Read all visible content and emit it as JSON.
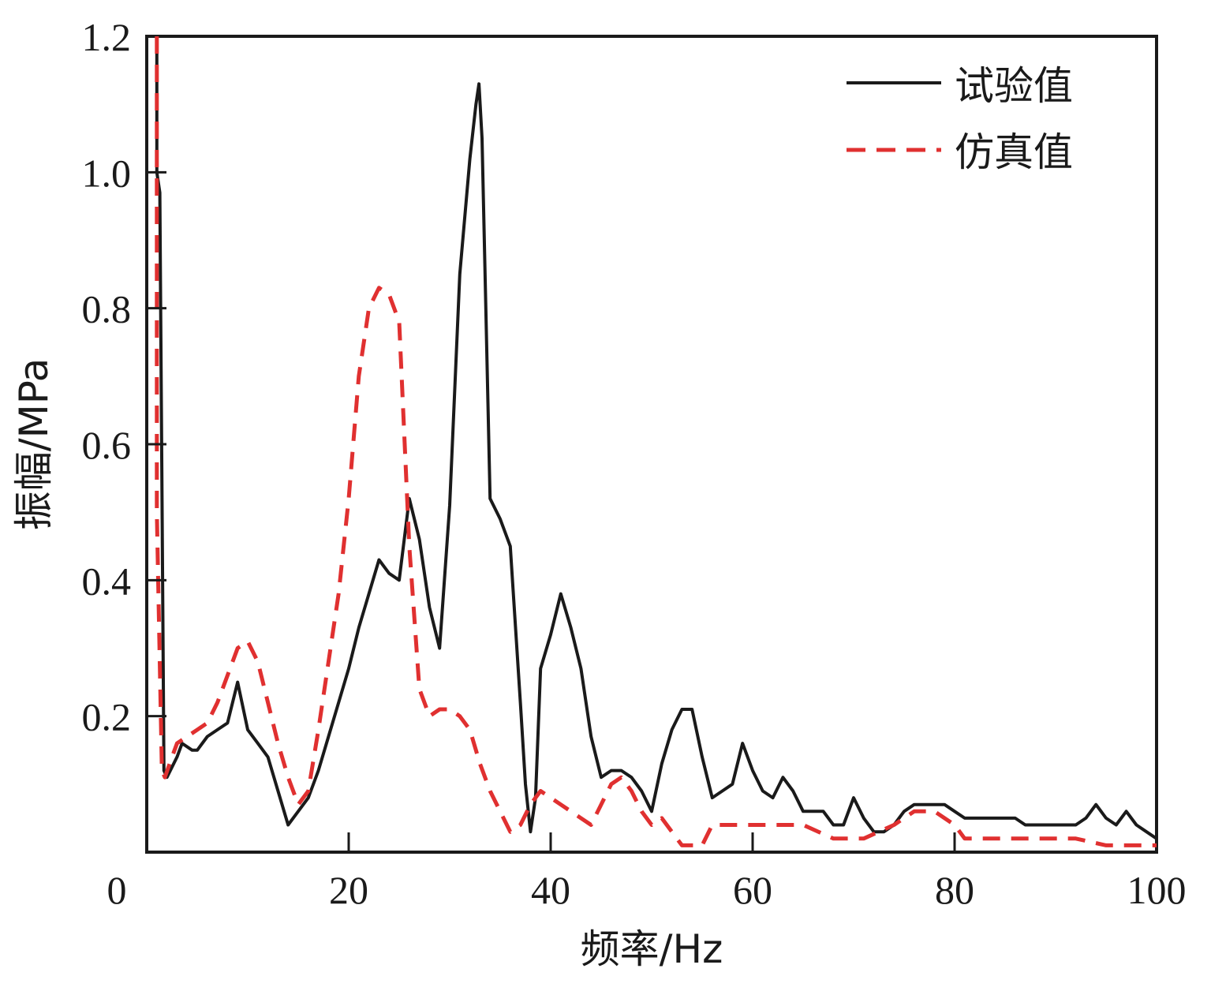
{
  "chart_data": {
    "type": "line",
    "xlabel": "频率/Hz",
    "ylabel": "振幅/MPa",
    "xlim": [
      0,
      100
    ],
    "ylim": [
      0,
      1.2
    ],
    "xticks": [
      "0",
      "20",
      "40",
      "60",
      "80",
      "100"
    ],
    "yticks": [
      "0.2",
      "0.4",
      "0.6",
      "0.8",
      "1.0",
      "1.2"
    ],
    "grid": false,
    "legend_position": "top-right",
    "series": [
      {
        "name": "试验值",
        "color": "#1a1a1a",
        "style": "solid",
        "x": [
          1,
          1,
          1.3,
          1.5,
          1.7,
          2,
          3,
          3.5,
          4.5,
          5,
          6,
          7,
          8,
          9,
          10,
          11,
          12,
          13,
          14,
          15,
          16,
          17,
          18,
          19,
          20,
          21,
          22,
          23,
          24,
          25,
          26,
          27,
          28,
          29,
          30,
          31,
          32,
          32.6,
          32.9,
          33.2,
          34,
          35,
          36,
          37,
          37.5,
          38,
          38.5,
          39,
          40,
          41,
          42,
          43,
          44,
          45,
          46,
          47,
          48,
          49,
          50,
          51,
          52,
          53,
          54,
          55,
          56,
          57,
          58,
          59,
          60,
          61,
          62,
          63,
          64,
          65,
          66,
          67,
          68,
          69,
          70,
          71,
          72,
          73,
          74,
          75,
          76,
          77,
          78,
          79,
          80,
          81,
          82,
          83,
          84,
          85,
          86,
          87,
          88,
          89,
          90,
          91,
          92,
          93,
          94,
          95,
          96,
          97,
          98,
          99,
          100
        ],
        "y": [
          1.2,
          1.0,
          0.97,
          0.55,
          0.12,
          0.11,
          0.14,
          0.16,
          0.15,
          0.15,
          0.17,
          0.18,
          0.19,
          0.25,
          0.18,
          0.16,
          0.14,
          0.09,
          0.04,
          0.06,
          0.08,
          0.12,
          0.17,
          0.22,
          0.27,
          0.33,
          0.38,
          0.43,
          0.41,
          0.4,
          0.52,
          0.46,
          0.36,
          0.3,
          0.51,
          0.85,
          1.02,
          1.1,
          1.13,
          1.05,
          0.52,
          0.49,
          0.45,
          0.22,
          0.1,
          0.03,
          0.08,
          0.27,
          0.32,
          0.38,
          0.33,
          0.27,
          0.17,
          0.11,
          0.12,
          0.12,
          0.11,
          0.09,
          0.06,
          0.13,
          0.18,
          0.21,
          0.21,
          0.14,
          0.08,
          0.09,
          0.1,
          0.16,
          0.12,
          0.09,
          0.08,
          0.11,
          0.09,
          0.06,
          0.06,
          0.06,
          0.04,
          0.04,
          0.08,
          0.05,
          0.03,
          0.03,
          0.04,
          0.06,
          0.07,
          0.07,
          0.07,
          0.07,
          0.06,
          0.05,
          0.05,
          0.05,
          0.05,
          0.05,
          0.05,
          0.04,
          0.04,
          0.04,
          0.04,
          0.04,
          0.04,
          0.05,
          0.07,
          0.05,
          0.04,
          0.06,
          0.04,
          0.03,
          0.02
        ]
      },
      {
        "name": "仿真值",
        "color": "#e03030",
        "style": "dashed",
        "x": [
          1,
          1,
          1.5,
          1.8,
          2.5,
          3,
          4,
          5,
          6,
          7,
          8,
          9,
          10,
          11,
          12,
          13,
          14,
          15,
          16,
          17,
          18,
          19,
          20,
          21,
          22,
          23,
          24,
          25,
          26,
          27,
          28,
          29,
          30,
          31,
          32,
          33,
          34,
          35,
          36,
          37,
          38,
          39,
          40,
          41,
          42,
          43,
          44,
          45,
          46,
          47,
          48,
          49,
          50,
          51,
          52,
          53,
          54,
          55,
          56,
          57,
          58,
          60,
          62,
          65,
          68,
          71,
          74,
          76,
          78,
          80,
          81,
          83,
          85,
          87,
          90,
          92,
          95,
          97,
          100
        ],
        "y": [
          1.2,
          0.5,
          0.12,
          0.11,
          0.14,
          0.16,
          0.17,
          0.18,
          0.19,
          0.22,
          0.26,
          0.3,
          0.31,
          0.28,
          0.22,
          0.16,
          0.11,
          0.07,
          0.09,
          0.18,
          0.28,
          0.38,
          0.52,
          0.7,
          0.8,
          0.83,
          0.82,
          0.78,
          0.45,
          0.24,
          0.2,
          0.21,
          0.21,
          0.2,
          0.18,
          0.13,
          0.09,
          0.06,
          0.03,
          0.04,
          0.07,
          0.09,
          0.08,
          0.07,
          0.06,
          0.05,
          0.04,
          0.07,
          0.1,
          0.11,
          0.09,
          0.06,
          0.04,
          0.05,
          0.03,
          0.01,
          0.01,
          0.01,
          0.04,
          0.04,
          0.04,
          0.04,
          0.04,
          0.04,
          0.02,
          0.02,
          0.04,
          0.06,
          0.06,
          0.04,
          0.02,
          0.02,
          0.02,
          0.02,
          0.02,
          0.02,
          0.01,
          0.01,
          0.01
        ]
      }
    ]
  }
}
